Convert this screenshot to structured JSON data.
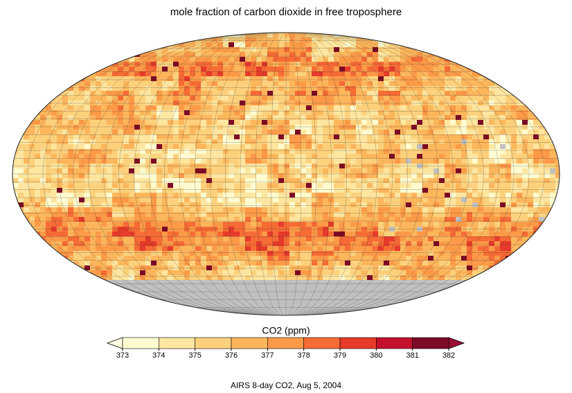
{
  "title": "mole fraction of carbon dioxide in free troposphere",
  "colorbar": {
    "label": "CO2 (ppm)",
    "ticks": [
      373,
      374,
      375,
      376,
      377,
      378,
      379,
      380,
      381,
      382
    ],
    "colors": [
      "#fffbd0",
      "#fee6a0",
      "#fdd17c",
      "#fdb65c",
      "#fc9a48",
      "#f76b35",
      "#e63a2a",
      "#c4102c",
      "#7d0a25"
    ],
    "under_color": "#fffde2",
    "over_color": "#9a0a35",
    "missing_color": "#c0c0c0"
  },
  "caption": "AIRS 8-day CO2, Aug 5, 2004"
}
